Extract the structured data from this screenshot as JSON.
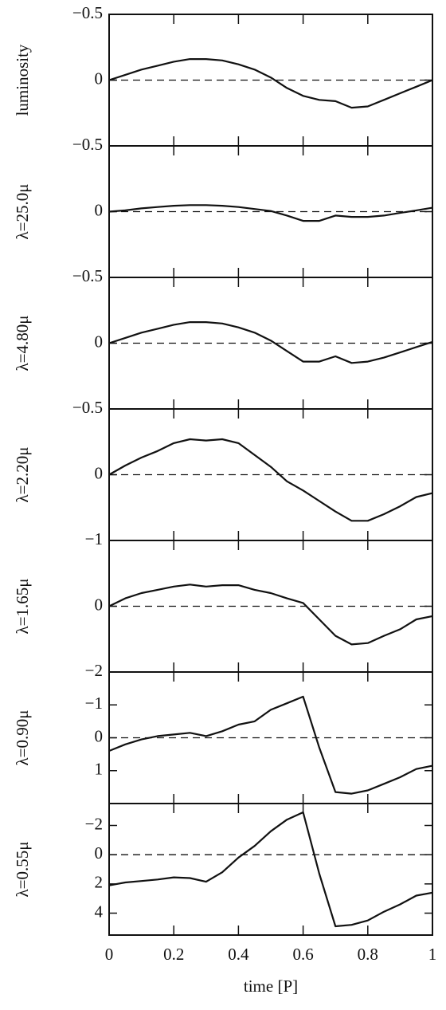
{
  "chart_data": [
    {
      "type": "line",
      "ylabel": "luminosity",
      "xlim": [
        0,
        1
      ],
      "ylim": [
        -0.5,
        0.5
      ],
      "y_inverted": true,
      "yticks": [
        {
          "value": -0.5,
          "label": "−0.5"
        },
        0
      ],
      "reference_line": 0,
      "xticks": [
        0,
        0.2,
        0.4,
        0.6,
        0.8,
        1
      ],
      "x": [
        0,
        0.05,
        0.1,
        0.15,
        0.2,
        0.25,
        0.3,
        0.35,
        0.4,
        0.45,
        0.5,
        0.55,
        0.6,
        0.65,
        0.7,
        0.75,
        0.8,
        0.85,
        0.9,
        0.95,
        1
      ],
      "values": [
        0,
        -0.04,
        -0.08,
        -0.11,
        -0.14,
        -0.16,
        -0.16,
        -0.15,
        -0.12,
        -0.08,
        -0.02,
        0.06,
        0.12,
        0.15,
        0.16,
        0.21,
        0.2,
        0.15,
        0.1,
        0.05,
        0
      ]
    },
    {
      "type": "line",
      "ylabel": "λ=25.0μ",
      "xlim": [
        0,
        1
      ],
      "ylim": [
        -0.5,
        0.5
      ],
      "y_inverted": true,
      "yticks": [
        {
          "value": -0.5,
          "label": "−0.5"
        },
        0
      ],
      "reference_line": 0,
      "xticks": [
        0,
        0.2,
        0.4,
        0.6,
        0.8,
        1
      ],
      "x": [
        0,
        0.05,
        0.1,
        0.15,
        0.2,
        0.25,
        0.3,
        0.35,
        0.4,
        0.45,
        0.5,
        0.55,
        0.6,
        0.65,
        0.7,
        0.75,
        0.8,
        0.85,
        0.9,
        0.95,
        1
      ],
      "values": [
        0,
        -0.01,
        -0.025,
        -0.035,
        -0.045,
        -0.05,
        -0.05,
        -0.045,
        -0.035,
        -0.02,
        -0.005,
        0.03,
        0.07,
        0.07,
        0.03,
        0.04,
        0.04,
        0.03,
        0.01,
        -0.01,
        -0.03
      ]
    },
    {
      "type": "line",
      "ylabel": "λ=4.80μ",
      "xlim": [
        0,
        1
      ],
      "ylim": [
        -0.5,
        0.5
      ],
      "y_inverted": true,
      "yticks": [
        {
          "value": -0.5,
          "label": "−0.5"
        },
        0
      ],
      "reference_line": 0,
      "xticks": [
        0,
        0.2,
        0.4,
        0.6,
        0.8,
        1
      ],
      "x": [
        0,
        0.05,
        0.1,
        0.15,
        0.2,
        0.25,
        0.3,
        0.35,
        0.4,
        0.45,
        0.5,
        0.55,
        0.6,
        0.65,
        0.7,
        0.75,
        0.8,
        0.85,
        0.9,
        0.95,
        1
      ],
      "values": [
        0,
        -0.04,
        -0.08,
        -0.11,
        -0.14,
        -0.16,
        -0.16,
        -0.15,
        -0.12,
        -0.08,
        -0.02,
        0.06,
        0.14,
        0.14,
        0.1,
        0.15,
        0.14,
        0.11,
        0.07,
        0.03,
        -0.01
      ]
    },
    {
      "type": "line",
      "ylabel": "λ=2.20μ",
      "xlim": [
        0,
        1
      ],
      "ylim": [
        -0.5,
        0.5
      ],
      "y_inverted": true,
      "yticks": [
        {
          "value": -0.5,
          "label": "−0.5"
        },
        0
      ],
      "reference_line": 0,
      "xticks": [
        0,
        0.2,
        0.4,
        0.6,
        0.8,
        1
      ],
      "x": [
        0,
        0.05,
        0.1,
        0.15,
        0.2,
        0.25,
        0.3,
        0.35,
        0.4,
        0.45,
        0.5,
        0.55,
        0.6,
        0.65,
        0.7,
        0.75,
        0.8,
        0.85,
        0.9,
        0.95,
        1
      ],
      "values": [
        0,
        -0.07,
        -0.13,
        -0.18,
        -0.24,
        -0.27,
        -0.26,
        -0.27,
        -0.24,
        -0.15,
        -0.06,
        0.05,
        0.12,
        0.2,
        0.28,
        0.35,
        0.35,
        0.3,
        0.24,
        0.17,
        0.14
      ]
    },
    {
      "type": "line",
      "ylabel": "λ=1.65μ",
      "xlim": [
        0,
        1
      ],
      "ylim": [
        -1,
        1
      ],
      "y_inverted": true,
      "yticks": [
        {
          "value": -1,
          "label": "−1"
        },
        0
      ],
      "reference_line": 0,
      "xticks": [
        0,
        0.2,
        0.4,
        0.6,
        0.8,
        1
      ],
      "x": [
        0,
        0.05,
        0.1,
        0.15,
        0.2,
        0.25,
        0.3,
        0.35,
        0.4,
        0.45,
        0.5,
        0.55,
        0.6,
        0.65,
        0.7,
        0.75,
        0.8,
        0.85,
        0.9,
        0.95,
        1
      ],
      "values": [
        0,
        -0.12,
        -0.2,
        -0.25,
        -0.3,
        -0.33,
        -0.3,
        -0.32,
        -0.32,
        -0.25,
        -0.2,
        -0.12,
        -0.05,
        0.2,
        0.45,
        0.58,
        0.56,
        0.45,
        0.35,
        0.2,
        0.15
      ]
    },
    {
      "type": "line",
      "ylabel": "λ=0.90μ",
      "xlim": [
        0,
        1
      ],
      "ylim": [
        -2,
        2
      ],
      "y_inverted": true,
      "yticks": [
        {
          "value": -2,
          "label": "−2"
        },
        {
          "value": -1,
          "label": "−1"
        },
        0,
        1
      ],
      "reference_line": 0,
      "xticks": [
        0,
        0.2,
        0.4,
        0.6,
        0.8,
        1
      ],
      "x": [
        0,
        0.05,
        0.1,
        0.15,
        0.2,
        0.25,
        0.3,
        0.35,
        0.4,
        0.45,
        0.5,
        0.55,
        0.6,
        0.65,
        0.7,
        0.75,
        0.8,
        0.85,
        0.9,
        0.95,
        1
      ],
      "values": [
        0.4,
        0.2,
        0.05,
        -0.05,
        -0.1,
        -0.15,
        -0.05,
        -0.2,
        -0.4,
        -0.5,
        -0.85,
        -1.05,
        -1.25,
        0.3,
        1.65,
        1.7,
        1.6,
        1.4,
        1.2,
        0.95,
        0.85
      ]
    },
    {
      "type": "line",
      "ylabel": "λ=0.55μ",
      "xlabel": "time [P]",
      "xlim": [
        0,
        1
      ],
      "ylim": [
        -3.5,
        5.5
      ],
      "y_inverted": true,
      "yticks": [
        {
          "value": -2,
          "label": "−2"
        },
        0,
        2,
        4
      ],
      "reference_line": 0,
      "xticks": [
        0,
        0.2,
        0.4,
        0.6,
        0.8,
        1
      ],
      "xtick_labels": true,
      "x": [
        0,
        0.05,
        0.1,
        0.15,
        0.2,
        0.25,
        0.3,
        0.35,
        0.4,
        0.45,
        0.5,
        0.55,
        0.6,
        0.65,
        0.7,
        0.75,
        0.8,
        0.85,
        0.9,
        0.95,
        1
      ],
      "values": [
        2.1,
        1.9,
        1.8,
        1.7,
        1.55,
        1.6,
        1.85,
        1.2,
        0.2,
        -0.6,
        -1.6,
        -2.4,
        -2.9,
        1.3,
        4.9,
        4.8,
        4.5,
        3.9,
        3.4,
        2.8,
        2.6
      ]
    }
  ]
}
